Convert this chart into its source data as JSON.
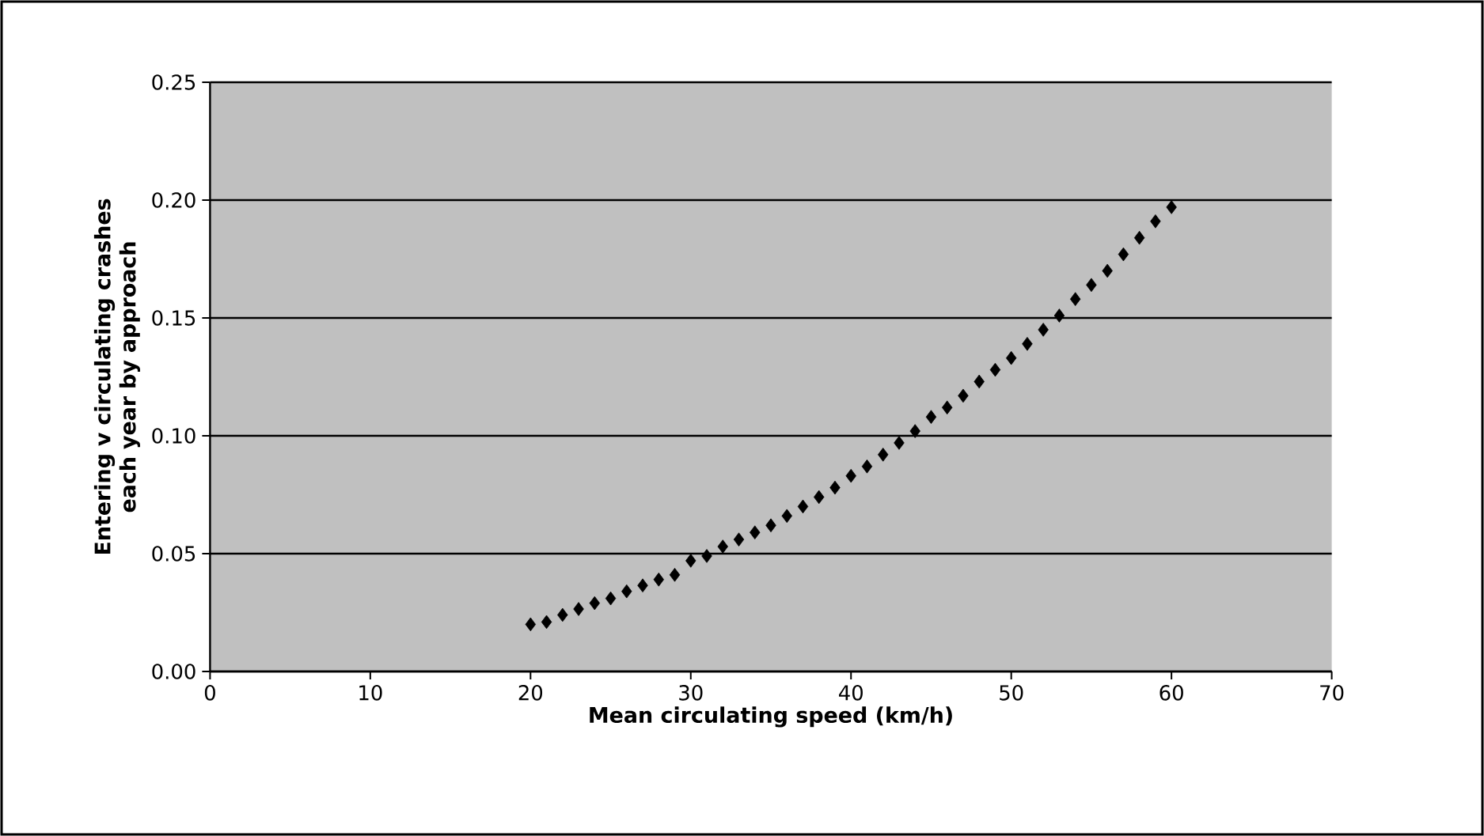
{
  "chart_data": {
    "type": "scatter",
    "xlabel": "Mean circulating speed (km/h)",
    "ylabel": "Entering v circulating crashes each year by approach",
    "x": [
      20,
      21,
      22,
      23,
      24,
      25,
      26,
      27,
      28,
      29,
      30,
      31,
      32,
      33,
      34,
      35,
      36,
      37,
      38,
      39,
      40,
      41,
      42,
      43,
      44,
      45,
      46,
      47,
      48,
      49,
      50,
      51,
      52,
      53,
      54,
      55,
      56,
      57,
      58,
      59,
      60
    ],
    "series": [
      {
        "color": "#000000",
        "values": [
          0.02,
          0.021,
          0.024,
          0.0265,
          0.029,
          0.031,
          0.034,
          0.0365,
          0.039,
          0.041,
          0.047,
          0.049,
          0.053,
          0.056,
          0.059,
          0.062,
          0.066,
          0.07,
          0.074,
          0.078,
          0.083,
          0.087,
          0.092,
          0.097,
          0.102,
          0.108,
          0.112,
          0.117,
          0.123,
          0.128,
          0.133,
          0.139,
          0.145,
          0.151,
          0.158,
          0.164,
          0.17,
          0.177,
          0.184,
          0.191,
          0.197
        ]
      }
    ],
    "marker": "diamond",
    "xlim": [
      0,
      70
    ],
    "xticks": [
      0,
      10,
      20,
      30,
      40,
      50,
      60,
      70
    ],
    "ylim": [
      0,
      0.25
    ],
    "yticks": [
      {
        "value": 0,
        "label": "0.00"
      },
      {
        "value": 0.05,
        "label": "0.05"
      },
      {
        "value": 0.1,
        "label": "0.10"
      },
      {
        "value": 0.15,
        "label": "0.15"
      },
      {
        "value": 0.2,
        "label": "0.20"
      },
      {
        "value": 0.25,
        "label": "0.25"
      }
    ],
    "grid": "y"
  }
}
